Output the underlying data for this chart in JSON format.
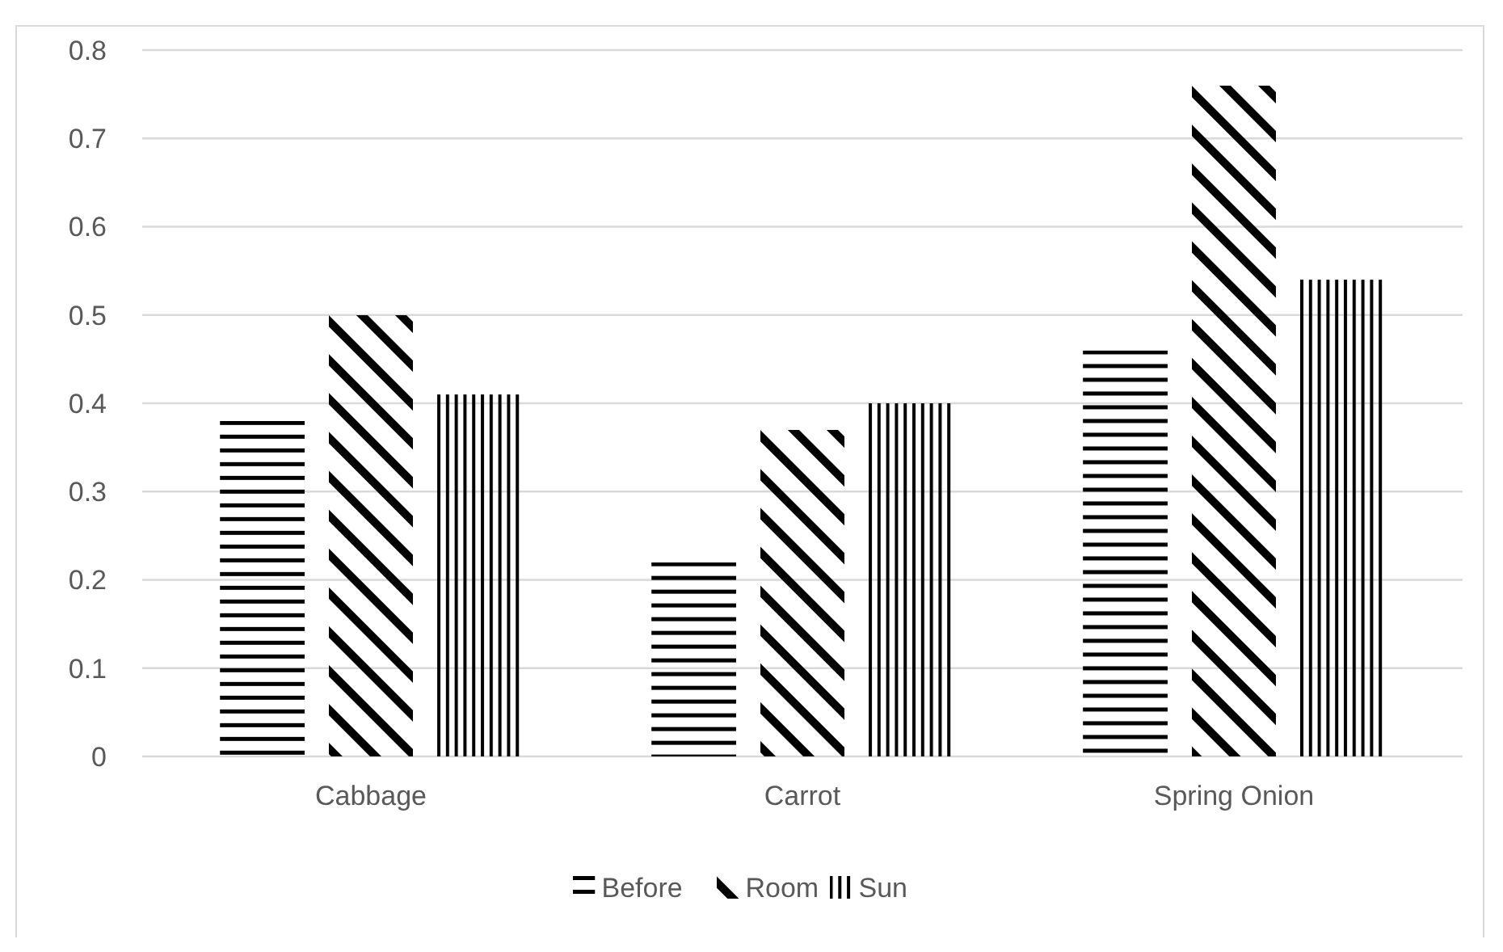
{
  "chart_data": {
    "type": "bar",
    "categories": [
      "Cabbage",
      "Carrot",
      "Spring Onion"
    ],
    "series": [
      {
        "name": "Before",
        "color": "#000000",
        "values": [
          0.38,
          0.22,
          0.46
        ]
      },
      {
        "name": "Room",
        "color": "#000000",
        "values": [
          0.5,
          0.37,
          0.76
        ]
      },
      {
        "name": "Sun",
        "color": "#000000",
        "values": [
          0.41,
          0.4,
          0.54
        ]
      }
    ],
    "ylim": [
      0,
      0.8
    ],
    "yticks": [
      0,
      0.1,
      0.2,
      0.3,
      0.4,
      0.5,
      0.6,
      0.7,
      0.8
    ],
    "grid": "y",
    "legend": "bottom"
  }
}
